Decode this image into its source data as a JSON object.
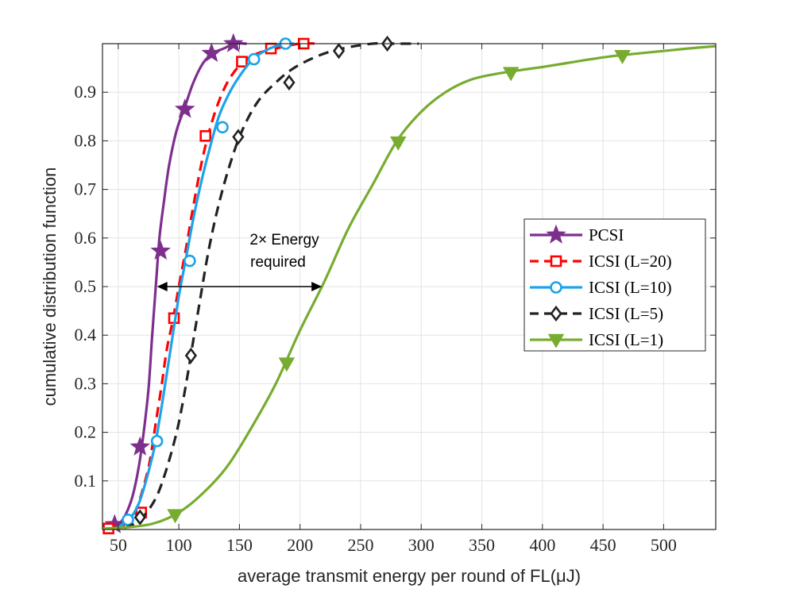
{
  "chart_data": {
    "type": "line",
    "title": "",
    "xlabel": "average transmit energy per round of FL(μJ)",
    "ylabel": "cumulative distribution function",
    "xlim": [
      37,
      543
    ],
    "ylim": [
      0,
      1
    ],
    "grid": true,
    "x_ticks": [
      50,
      100,
      150,
      200,
      250,
      300,
      350,
      400,
      450,
      500
    ],
    "y_ticks": [
      0.1,
      0.2,
      0.3,
      0.4,
      0.5,
      0.6,
      0.7,
      0.8,
      0.9
    ],
    "legend_position": "middle-right",
    "annotation": {
      "line1": "2× Energy",
      "line2": "required",
      "y": 0.5,
      "x_from": 82,
      "x_to": 218
    },
    "series": [
      {
        "name": "PCSI",
        "color": "#7E2F8E",
        "dash": "solid",
        "marker": "star",
        "x": [
          43,
          50,
          56,
          62,
          67,
          71,
          75,
          78,
          81,
          84,
          88,
          92,
          98,
          105,
          112,
          120,
          128,
          137,
          146,
          156
        ],
        "y": [
          0.003,
          0.01,
          0.03,
          0.07,
          0.13,
          0.2,
          0.29,
          0.4,
          0.5,
          0.6,
          0.68,
          0.75,
          0.82,
          0.87,
          0.92,
          0.96,
          0.98,
          0.99,
          1.0,
          1.0
        ],
        "marker_x": [
          47,
          68,
          85,
          105,
          127,
          145
        ],
        "marker_y": [
          0.01,
          0.17,
          0.573,
          0.865,
          0.98,
          1.0
        ]
      },
      {
        "name": "ICSI (L=20)",
        "color": "#FF0000",
        "dash": "dashed",
        "marker": "square",
        "x": [
          40,
          50,
          58,
          64,
          70,
          76,
          81,
          86,
          90,
          95,
          100,
          106,
          113,
          121,
          130,
          140,
          152,
          165,
          180,
          200,
          215
        ],
        "y": [
          0.002,
          0.005,
          0.015,
          0.035,
          0.08,
          0.14,
          0.22,
          0.3,
          0.37,
          0.43,
          0.5,
          0.58,
          0.68,
          0.78,
          0.86,
          0.92,
          0.96,
          0.98,
          0.99,
          1.0,
          1.0
        ],
        "marker_x": [
          42,
          69,
          96,
          122,
          152,
          176,
          203
        ],
        "marker_y": [
          0.002,
          0.035,
          0.435,
          0.81,
          0.963,
          0.99,
          1.0
        ]
      },
      {
        "name": "ICSI (L=10)",
        "color": "#1CA3EC",
        "dash": "solid",
        "marker": "circle",
        "x": [
          50,
          56,
          62,
          68,
          74,
          80,
          85,
          90,
          95,
          100,
          106,
          112,
          118,
          125,
          133,
          142,
          152,
          162,
          175,
          188,
          195
        ],
        "y": [
          0.005,
          0.015,
          0.03,
          0.06,
          0.11,
          0.17,
          0.24,
          0.32,
          0.4,
          0.48,
          0.56,
          0.64,
          0.71,
          0.78,
          0.85,
          0.9,
          0.94,
          0.97,
          0.99,
          1.0,
          1.0
        ],
        "marker_x": [
          58,
          82,
          109,
          136,
          162,
          188
        ],
        "marker_y": [
          0.02,
          0.182,
          0.553,
          0.828,
          0.968,
          1.0
        ]
      },
      {
        "name": "ICSI (L=5)",
        "color": "#222222",
        "dash": "dashed",
        "marker": "diamond",
        "x": [
          55,
          62,
          68,
          75,
          82,
          88,
          94,
          100,
          106,
          112,
          118,
          125,
          133,
          142,
          152,
          165,
          180,
          195,
          215,
          235,
          260,
          280,
          298
        ],
        "y": [
          0.003,
          0.01,
          0.02,
          0.04,
          0.07,
          0.11,
          0.16,
          0.22,
          0.3,
          0.39,
          0.48,
          0.58,
          0.67,
          0.75,
          0.82,
          0.88,
          0.92,
          0.95,
          0.975,
          0.99,
          1.0,
          1.0,
          1.0
        ],
        "marker_x": [
          68,
          110,
          149,
          191,
          232,
          272
        ],
        "marker_y": [
          0.025,
          0.358,
          0.808,
          0.92,
          0.985,
          1.0
        ]
      },
      {
        "name": "ICSI (L=1)",
        "color": "#77AC30",
        "dash": "solid",
        "marker": "triangle-down",
        "x": [
          37,
          60,
          80,
          100,
          120,
          140,
          160,
          180,
          200,
          220,
          240,
          260,
          280,
          300,
          320,
          340,
          360,
          380,
          400,
          420,
          440,
          460,
          480,
          500,
          520,
          543
        ],
        "y": [
          0.002,
          0.005,
          0.013,
          0.035,
          0.075,
          0.13,
          0.21,
          0.3,
          0.41,
          0.51,
          0.62,
          0.71,
          0.8,
          0.86,
          0.9,
          0.925,
          0.937,
          0.945,
          0.952,
          0.96,
          0.968,
          0.975,
          0.98,
          0.985,
          0.99,
          0.995
        ],
        "marker_x": [
          97,
          189,
          281,
          374,
          466
        ],
        "marker_y": [
          0.03,
          0.342,
          0.797,
          0.94,
          0.975
        ]
      }
    ]
  }
}
